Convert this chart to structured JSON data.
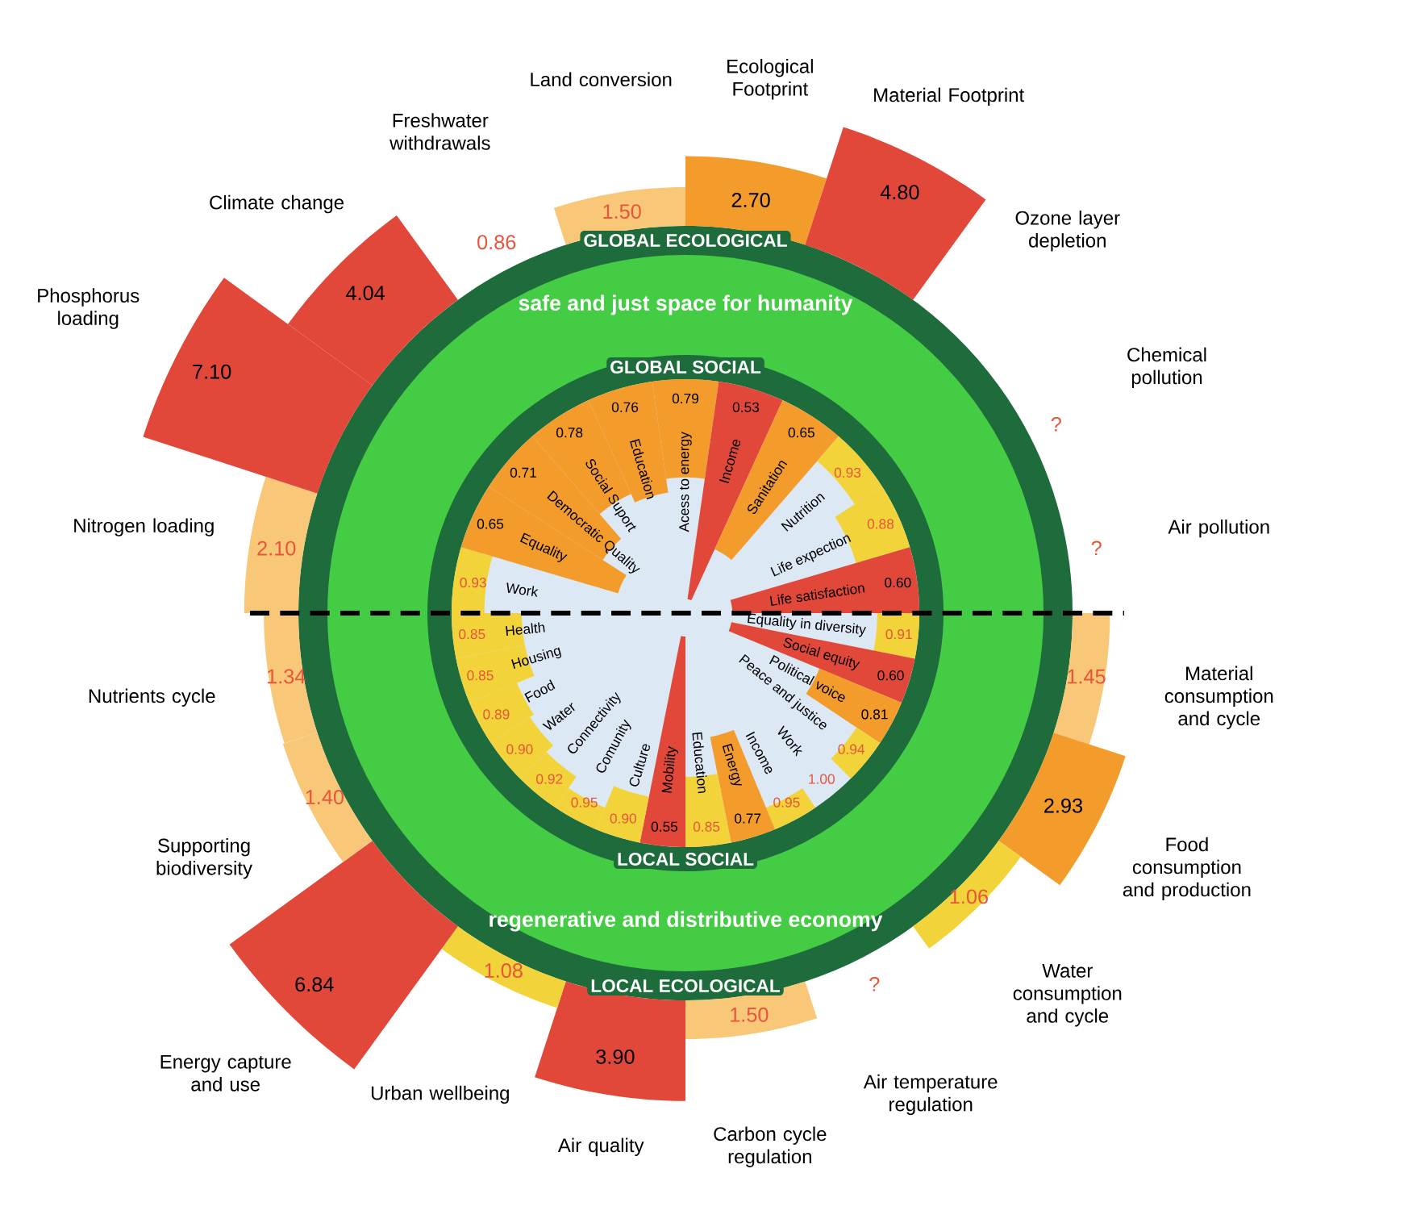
{
  "chart_data": [
    {
      "type": "other",
      "title": "GLOBAL ECOLOGICAL",
      "annotations": [
        "safe and just space for humanity"
      ],
      "categories": [
        "Nitrogen loading",
        "Phosphorus loading",
        "Climate change",
        "Freshwater withdrawals",
        "Land conversion",
        "Ecological Footprint",
        "Material Footprint",
        "Ozone layer depletion",
        "Chemical pollution",
        "Air pollution"
      ],
      "values": [
        2.1,
        7.1,
        4.04,
        0.86,
        1.5,
        2.7,
        4.8,
        null,
        null,
        null
      ],
      "value_labels": [
        "2.10",
        "7.10",
        "4.04",
        "0.86",
        "1.50",
        "2.70",
        "4.80",
        null,
        "?",
        "?"
      ],
      "colors": [
        "#F8C777",
        "#E2483A",
        "#E2483A",
        null,
        "#F8C777",
        "#F39C2B",
        "#E2483A",
        null,
        null,
        null
      ]
    },
    {
      "type": "other",
      "title": "GLOBAL SOCIAL",
      "categories": [
        "Work",
        "Equality",
        "Democratic Quality",
        "Social Suport",
        "Education",
        "Acess to energy",
        "Income",
        "Sanitation",
        "Nutrition",
        "Life expection",
        "Life satisfaction"
      ],
      "values": [
        0.93,
        0.65,
        0.71,
        0.78,
        0.76,
        0.79,
        0.53,
        0.65,
        0.93,
        0.88,
        0.6
      ],
      "value_labels": [
        "0.93",
        "0.65",
        "0.71",
        "0.78",
        "0.76",
        "0.79",
        "0.53",
        "0.65",
        "0.93",
        "0.88",
        "0.60"
      ],
      "colors": [
        "#F2D43A",
        "#F39C2B",
        "#F39C2B",
        "#F39C2B",
        "#F39C2B",
        "#F39C2B",
        "#E2483A",
        "#F39C2B",
        "#F2D43A",
        "#F2D43A",
        "#E2483A"
      ]
    },
    {
      "type": "other",
      "title": "LOCAL SOCIAL",
      "categories": [
        "Equality in diversity",
        "Social equity",
        "Political voice",
        "Peace and justice",
        "Work",
        "Income",
        "Energy",
        "Education",
        "Mobility",
        "Culture",
        "Comunity",
        "Connectivity",
        "Water",
        "Food",
        "Housing",
        "Health"
      ],
      "values": [
        0.91,
        0.6,
        0.81,
        0.94,
        1.0,
        0.95,
        0.77,
        0.85,
        0.55,
        0.9,
        0.95,
        0.92,
        0.9,
        0.89,
        0.85,
        0.85
      ],
      "value_labels": [
        "0.91",
        "0.60",
        "0.81",
        "0.94",
        "1.00",
        "0.95",
        "0.77",
        "0.85",
        "0.55",
        "0.90",
        "0.95",
        "0.92",
        "0.90",
        "0.89",
        "0.85",
        "0.85"
      ],
      "colors": [
        "#F2D43A",
        "#E2483A",
        "#F39C2B",
        "#F2D43A",
        null,
        "#F2D43A",
        "#F39C2B",
        "#F2D43A",
        "#E2483A",
        "#F2D43A",
        "#F2D43A",
        "#F2D43A",
        "#F2D43A",
        "#F2D43A",
        "#F2D43A",
        "#F2D43A"
      ]
    },
    {
      "type": "other",
      "title": "LOCAL ECOLOGICAL",
      "annotations": [
        "regenerative and distributive economy"
      ],
      "categories": [
        "Material consumption and cycle",
        "Food consumption and production",
        "Water consumption and cycle",
        "Air temperature regulation",
        "Carbon cycle regulation",
        "Air quality",
        "Urban wellbeing",
        "Energy capture and use",
        "Supporting biodiversity",
        "Nutrients cycle"
      ],
      "values": [
        1.45,
        2.93,
        1.06,
        null,
        1.5,
        3.9,
        1.08,
        6.84,
        1.4,
        1.34
      ],
      "value_labels": [
        "1.45",
        "2.93",
        "1.06",
        "?",
        "1.50",
        "3.90",
        "1.08",
        "6.84",
        "1.40",
        "1.34"
      ],
      "colors": [
        "#F8C777",
        "#F39C2B",
        "#F2D43A",
        null,
        "#F8C777",
        "#E2483A",
        "#F2D43A",
        "#E2483A",
        "#F8C777",
        "#F8C777"
      ]
    }
  ]
}
